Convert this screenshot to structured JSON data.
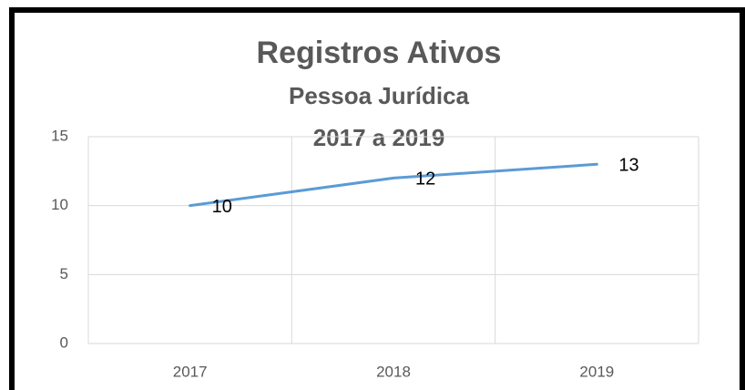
{
  "chart_data": {
    "type": "line",
    "title": "Registros Ativos",
    "subtitle": [
      "Pessoa Jurídica",
      "2017 a 2019"
    ],
    "categories": [
      "2017",
      "2018",
      "2019"
    ],
    "values": [
      10,
      12,
      13
    ],
    "color": "#5b9bd5",
    "ylim": [
      0,
      15
    ],
    "yticks": [
      0,
      5,
      10,
      15
    ],
    "grid": true
  }
}
